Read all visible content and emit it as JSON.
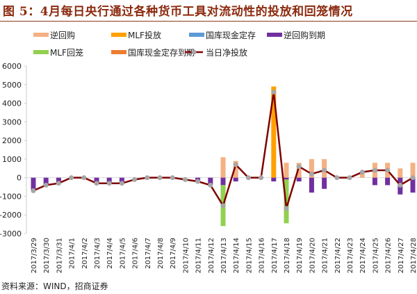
{
  "title": "图 5：4月每日央行通过各种货币工具对流动性的投放和回笼情况",
  "source": "资料来源：WIND，招商证券",
  "chart_data": {
    "type": "bar",
    "title": "图 5：4月每日央行通过各种货币工具对流动性的投放和回笼情况",
    "xlabel": "",
    "ylabel": "",
    "ylim": [
      -3000,
      6000
    ],
    "yticks": [
      6000,
      5000,
      4000,
      3000,
      2000,
      1000,
      0,
      -1000,
      -2000,
      -3000
    ],
    "legend_position": "top",
    "categories": [
      "2017/3/29",
      "2017/3/30",
      "2017/3/31",
      "2017/4/1",
      "2017/4/2",
      "2017/4/3",
      "2017/4/4",
      "2017/4/5",
      "2017/4/6",
      "2017/4/7",
      "2017/4/8",
      "2017/4/9",
      "2017/4/10",
      "2017/4/11",
      "2017/4/12",
      "2017/4/13",
      "2017/4/14",
      "2017/4/15",
      "2017/4/16",
      "2017/4/17",
      "2017/4/18",
      "2017/4/19",
      "2017/4/20",
      "2017/4/21",
      "2017/4/22",
      "2017/4/23",
      "2017/4/24",
      "2017/4/25",
      "2017/4/26",
      "2017/4/27",
      "2017/4/28"
    ],
    "series": [
      {
        "name": "逆回购",
        "kind": "bar",
        "color": "#F4B183",
        "values": [
          0,
          0,
          0,
          0,
          0,
          0,
          0,
          0,
          0,
          0,
          0,
          0,
          0,
          0,
          0,
          1100,
          900,
          0,
          0,
          0,
          800,
          800,
          1000,
          1000,
          0,
          0,
          300,
          800,
          800,
          500,
          800
        ]
      },
      {
        "name": "MLF投放",
        "kind": "bar",
        "color": "#FFA000",
        "values": [
          0,
          0,
          0,
          0,
          0,
          0,
          0,
          0,
          0,
          0,
          0,
          0,
          0,
          0,
          0,
          0,
          0,
          0,
          0,
          4900,
          0,
          0,
          0,
          0,
          0,
          0,
          0,
          0,
          0,
          0,
          0
        ]
      },
      {
        "name": "国库现金定存",
        "kind": "bar",
        "color": "#5B9BD5",
        "values": [
          0,
          0,
          0,
          0,
          0,
          0,
          0,
          0,
          0,
          0,
          0,
          0,
          0,
          0,
          0,
          0,
          0,
          0,
          0,
          0,
          0,
          0,
          0,
          0,
          0,
          0,
          0,
          0,
          0,
          0,
          0
        ]
      },
      {
        "name": "逆回购到期",
        "kind": "bar",
        "color": "#7030A0",
        "values": [
          -700,
          -400,
          -300,
          0,
          0,
          -300,
          -300,
          -300,
          0,
          0,
          0,
          0,
          0,
          -200,
          -400,
          -400,
          -200,
          0,
          0,
          -200,
          -100,
          -200,
          -800,
          -600,
          0,
          0,
          0,
          -400,
          -400,
          -900,
          -800
        ]
      },
      {
        "name": "MLF回笼",
        "kind": "bar",
        "color": "#92D050",
        "values": [
          0,
          0,
          0,
          0,
          0,
          0,
          0,
          0,
          0,
          0,
          0,
          0,
          0,
          0,
          0,
          -2200,
          0,
          0,
          0,
          0,
          -2350,
          0,
          0,
          0,
          0,
          0,
          0,
          0,
          0,
          0,
          0
        ]
      },
      {
        "name": "国库现金定存到期",
        "kind": "bar",
        "color": "#ED7D31",
        "values": [
          0,
          0,
          0,
          0,
          0,
          0,
          0,
          0,
          0,
          0,
          0,
          0,
          0,
          0,
          0,
          0,
          0,
          0,
          0,
          0,
          0,
          0,
          0,
          0,
          0,
          0,
          0,
          0,
          0,
          0,
          0
        ]
      },
      {
        "name": "当日净投放",
        "kind": "line",
        "color": "#7F0000",
        "marker_color": "#A6A6A6",
        "values": [
          -700,
          -400,
          -300,
          0,
          0,
          -300,
          -300,
          -300,
          -100,
          0,
          0,
          0,
          -100,
          -200,
          -400,
          -1500,
          700,
          0,
          0,
          4600,
          -1650,
          600,
          200,
          400,
          0,
          0,
          300,
          400,
          400,
          -400,
          0
        ]
      }
    ]
  }
}
